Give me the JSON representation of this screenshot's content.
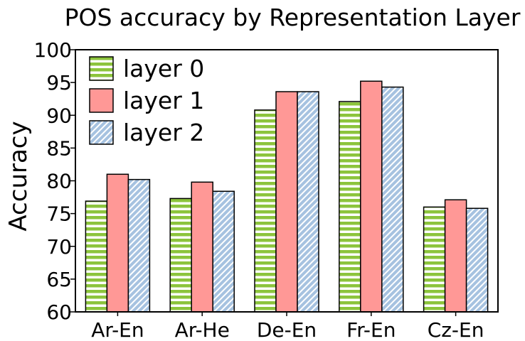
{
  "chart_data": {
    "type": "bar",
    "title": "POS accuracy by Representation Layer",
    "xlabel": "",
    "ylabel": "Accuracy",
    "ylim": [
      60,
      100
    ],
    "yticks": [
      "60",
      "65",
      "70",
      "75",
      "80",
      "85",
      "90",
      "95",
      "100"
    ],
    "categories": [
      "Ar-En",
      "Ar-He",
      "De-En",
      "Fr-En",
      "Cz-En"
    ],
    "series": [
      {
        "name": "layer 0",
        "values": [
          76.9,
          77.3,
          90.8,
          92.1,
          76.0
        ],
        "color": "#8cc43c",
        "pattern": "horizontal-stripes"
      },
      {
        "name": "layer 1",
        "values": [
          81.0,
          79.8,
          93.6,
          95.2,
          77.1
        ],
        "color": "#ff9896",
        "pattern": "solid"
      },
      {
        "name": "layer 2",
        "values": [
          80.2,
          78.4,
          93.6,
          94.3,
          75.8
        ],
        "color": "#aec7e8",
        "pattern": "diagonal-stripes"
      }
    ],
    "legend_position": "top-left",
    "grid": false
  }
}
